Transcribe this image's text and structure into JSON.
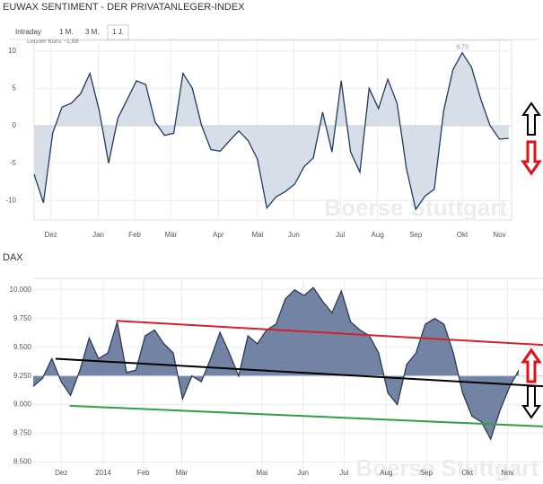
{
  "tabs": [
    "Intraday",
    "1 M.",
    "3 M.",
    "1 J."
  ],
  "chart_data": [
    {
      "type": "area",
      "title": "EUWAX SENTIMENT - DER PRIVATANLEGER-INDEX",
      "last_label": "Letzter Kurs: -1,68",
      "watermark": "Boerse Stuttgart",
      "grid": true,
      "baseline": 0,
      "line_color": "#1f3a5f",
      "fill_color": "#d7dee8",
      "xlim": [
        0,
        51.3
      ],
      "ylim": [
        -12.6,
        11.4
      ],
      "yticks": [
        10,
        5,
        0,
        -5,
        -10
      ],
      "xticks": [
        {
          "value": 1.8,
          "label": "Dez"
        },
        {
          "value": 6.9,
          "label": "Jan"
        },
        {
          "value": 10.8,
          "label": "Feb"
        },
        {
          "value": 14.7,
          "label": "Mär"
        },
        {
          "value": 19.8,
          "label": "Apr"
        },
        {
          "value": 24.0,
          "label": "Mai"
        },
        {
          "value": 27.9,
          "label": "Jun"
        },
        {
          "value": 32.9,
          "label": "Jul"
        },
        {
          "value": 36.9,
          "label": "Aug"
        },
        {
          "value": 41.0,
          "label": "Sep"
        },
        {
          "value": 46.0,
          "label": "Okt"
        },
        {
          "value": 50.0,
          "label": "Nov"
        }
      ],
      "x": [
        0,
        1,
        2,
        3,
        4,
        5,
        6,
        7,
        8,
        9,
        10,
        11,
        12,
        13,
        14,
        15,
        16,
        17,
        18,
        19,
        20,
        21,
        22,
        23,
        24,
        25,
        26,
        27,
        28,
        29,
        30,
        31,
        32,
        33,
        34,
        35,
        36,
        37,
        38,
        39,
        40,
        41,
        42,
        43,
        44,
        45,
        46,
        47,
        48,
        49,
        50,
        51
      ],
      "values": [
        -6.5,
        -10.3,
        -1,
        2.5,
        3,
        4.3,
        7,
        2,
        -5,
        1,
        3.5,
        6,
        5.5,
        0.5,
        -1.3,
        -1,
        7,
        5,
        0,
        -3.2,
        -3.4,
        -2,
        -0.7,
        -2,
        -4.5,
        -11,
        -9.5,
        -8.8,
        -7.8,
        -5.5,
        -4.3,
        1.8,
        -3.5,
        6,
        -3.5,
        -6.2,
        5,
        2.3,
        6.2,
        3,
        -5.7,
        -11.2,
        -9.4,
        -8.5,
        2,
        7.5,
        9.75,
        7.8,
        3.5,
        0,
        -1.8,
        -1.68
      ],
      "annotations": [
        {
          "text": "9,75",
          "x": 46,
          "y": 9.75
        }
      ]
    },
    {
      "type": "area",
      "title": "DAX",
      "watermark": "Boerse Stuttgart",
      "grid": true,
      "baseline": 9250,
      "line_color": "#2a3a55",
      "fill_color": "#7383a3",
      "xlim": [
        0,
        54.6
      ],
      "ylim": [
        8340,
        10100
      ],
      "yticks": [
        {
          "value": 10000,
          "label": "10.000"
        },
        {
          "value": 9750,
          "label": "9.750"
        },
        {
          "value": 9500,
          "label": "9.500"
        },
        {
          "value": 9250,
          "label": "9.250"
        },
        {
          "value": 9000,
          "label": "9.000"
        },
        {
          "value": 8750,
          "label": "8.750"
        },
        {
          "value": 8500,
          "label": "8.500"
        }
      ],
      "xticks": [
        {
          "value": 3.0,
          "label": "Dez"
        },
        {
          "value": 7.5,
          "label": "2014"
        },
        {
          "value": 11.8,
          "label": "Feb"
        },
        {
          "value": 15.9,
          "label": "Mär"
        },
        {
          "value": 24.5,
          "label": "Mai"
        },
        {
          "value": 28.9,
          "label": "Jun"
        },
        {
          "value": 33.3,
          "label": "Jul"
        },
        {
          "value": 37.8,
          "label": "Aug"
        },
        {
          "value": 42.1,
          "label": "Sep"
        },
        {
          "value": 46.5,
          "label": "Okt"
        },
        {
          "value": 50.8,
          "label": "Nov"
        }
      ],
      "x": [
        0,
        1,
        2,
        3,
        4,
        5,
        6,
        7,
        8,
        9,
        10,
        11,
        12,
        13,
        14,
        15,
        16,
        17,
        18,
        19,
        20,
        21,
        22,
        23,
        24,
        25,
        26,
        27,
        28,
        29,
        30,
        31,
        32,
        33,
        34,
        35,
        36,
        37,
        38,
        39,
        40,
        41,
        42,
        43,
        44,
        45,
        46,
        47,
        48,
        49,
        50,
        51,
        52
      ],
      "values": [
        9160,
        9230,
        9400,
        9200,
        9080,
        9300,
        9580,
        9400,
        9450,
        9720,
        9280,
        9300,
        9600,
        9650,
        9530,
        9450,
        9050,
        9250,
        9200,
        9400,
        9630,
        9450,
        9250,
        9600,
        9530,
        9650,
        9700,
        9920,
        10000,
        9950,
        10020,
        9900,
        9800,
        9990,
        9720,
        9650,
        9600,
        9450,
        9100,
        9000,
        9350,
        9450,
        9700,
        9750,
        9700,
        9450,
        9100,
        8900,
        8850,
        8700,
        8950,
        9150,
        9300
      ],
      "trendlines": [
        {
          "color": "#d62028",
          "x": [
            8.9,
            54.6
          ],
          "values": [
            9730,
            9520
          ]
        },
        {
          "color": "#000000",
          "x": [
            2.4,
            54.6
          ],
          "values": [
            9400,
            9160
          ]
        },
        {
          "color": "#2ea043",
          "x": [
            3.9,
            54.6
          ],
          "values": [
            8990,
            8810
          ]
        }
      ]
    }
  ]
}
